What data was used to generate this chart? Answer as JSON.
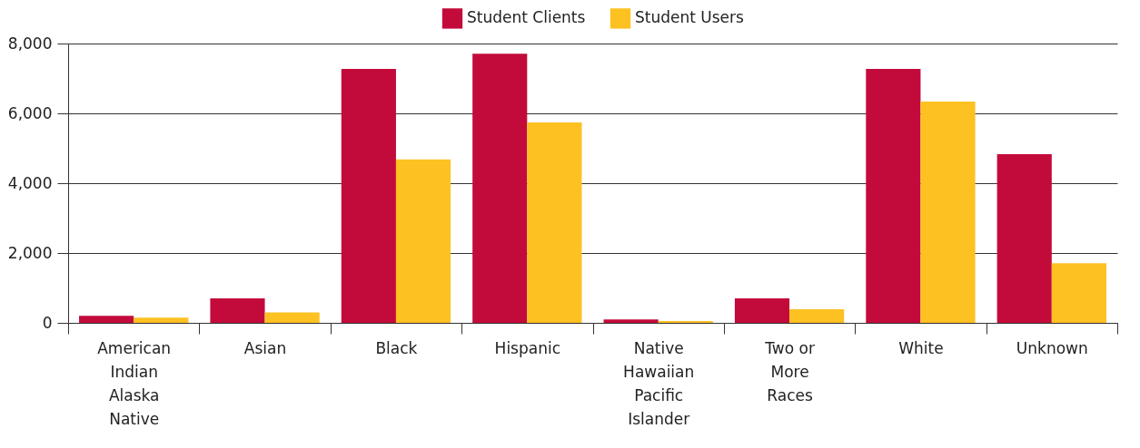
{
  "chart_data": {
    "type": "bar",
    "categories": [
      "American Indian Alaska Native",
      "Asian",
      "Black",
      "Hispanic",
      "Native Hawaiian Pacific Islander",
      "Two or More Races",
      "White",
      "Unknown"
    ],
    "series": [
      {
        "name": "Student Clients",
        "color": "#c30b3b",
        "values": [
          200,
          700,
          7270,
          7710,
          100,
          700,
          7270,
          4830
        ]
      },
      {
        "name": "Student Users",
        "color": "#fdc122",
        "values": [
          150,
          300,
          4680,
          5740,
          50,
          390,
          6340,
          1710
        ]
      }
    ],
    "ylim": [
      0,
      8000
    ],
    "yticks": [
      0,
      {
        "value": 2000,
        "label": "2,000"
      },
      {
        "value": 4000,
        "label": "4,000"
      },
      {
        "value": 6000,
        "label": "6,000"
      },
      {
        "value": 8000,
        "label": "8,000"
      }
    ],
    "grid": "y",
    "legend": "top"
  }
}
